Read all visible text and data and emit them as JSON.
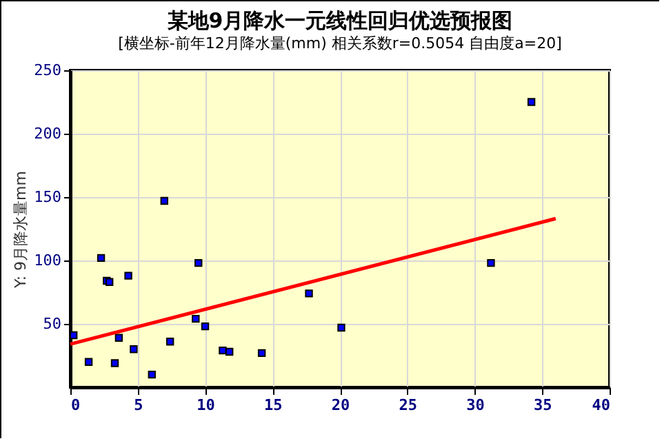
{
  "chart_data": {
    "type": "scatter",
    "title": "某地9月降水一元线性回归优选预报图",
    "subtitle": "[横坐标-前年12月降水量(mm) 相关系数r=0.5054 自由度a=20]",
    "ylabel": "Y: 9月降水量mm",
    "xlim": [
      0,
      40
    ],
    "xticks": [
      0,
      5,
      10,
      15,
      20,
      25,
      30,
      35,
      40
    ],
    "ylim": [
      0,
      250
    ],
    "yticks": [
      50,
      100,
      150,
      200,
      250
    ],
    "grid": true,
    "series": [
      {
        "marker": "square",
        "color": "#0000ff",
        "x": [
          0.24,
          1.36,
          2.28,
          2.7,
          2.9,
          3.3,
          3.6,
          4.3,
          4.7,
          6.05,
          6.97,
          7.4,
          9.3,
          9.5,
          10.0,
          11.3,
          11.8,
          14.2,
          17.7,
          20.1,
          31.2,
          34.2
        ],
        "values": [
          41,
          20,
          102,
          84,
          83,
          19,
          39,
          88,
          30,
          10,
          147,
          36,
          54,
          98,
          48,
          29,
          28,
          27,
          74,
          47,
          98,
          225
        ]
      },
      {
        "type": "line",
        "color": "#ff0000",
        "x": [
          0,
          36
        ],
        "values": [
          34,
          133
        ]
      }
    ]
  }
}
